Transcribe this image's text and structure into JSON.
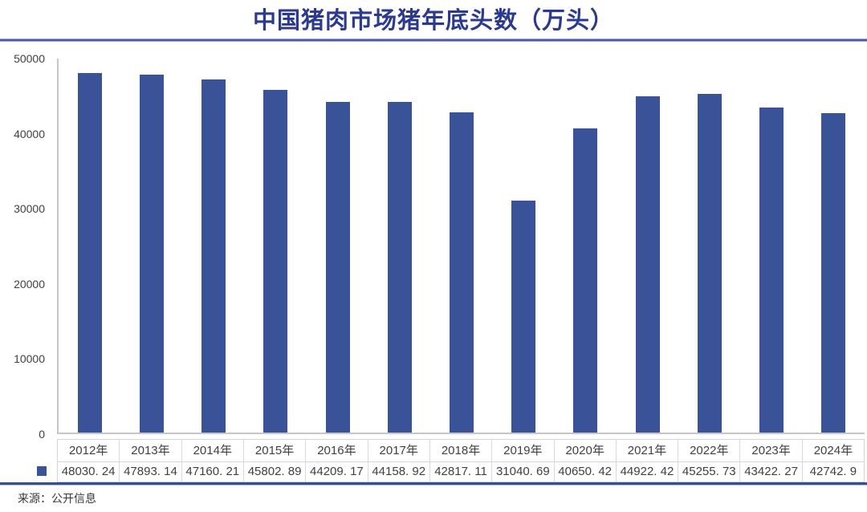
{
  "title": "中国猪肉市场猪年底头数（万头）",
  "source": "来源：公开信息",
  "colors": {
    "bar": "#3a5298",
    "title": "#2b398f",
    "divider_top": "#4d58a8",
    "divider_bottom": "#32508f",
    "gridline": "#c6c6c6",
    "table_border": "#d5d5d5",
    "text": "#404040"
  },
  "legend": {
    "icon": "square-legend-key",
    "label": ""
  },
  "chart_data": {
    "type": "bar",
    "title": "中国猪肉市场猪年底头数（万头）",
    "xlabel": "",
    "ylabel": "",
    "categories": [
      "2012年",
      "2013年",
      "2014年",
      "2015年",
      "2016年",
      "2017年",
      "2018年",
      "2019年",
      "2020年",
      "2021年",
      "2022年",
      "2023年",
      "2024年"
    ],
    "values": [
      48030.24,
      47893.14,
      47160.21,
      45802.89,
      44209.17,
      44158.92,
      42817.11,
      31040.69,
      40650.42,
      44922.42,
      45255.73,
      43422.27,
      42742.9
    ],
    "values_display": [
      "48030. 24",
      "47893. 14",
      "47160. 21",
      "45802. 89",
      "44209. 17",
      "44158. 92",
      "42817. 11",
      "31040. 69",
      "40650. 42",
      "44922. 42",
      "45255. 73",
      "43422. 27",
      "42742. 9"
    ],
    "yticks": [
      0,
      10000,
      20000,
      30000,
      40000,
      50000
    ],
    "ytick_labels": [
      "0",
      "10000",
      "20000",
      "30000",
      "40000",
      "50000"
    ],
    "ylim": [
      0,
      50000
    ],
    "grid": false,
    "legend_position": "data-table-left",
    "data_table_shown": true
  }
}
